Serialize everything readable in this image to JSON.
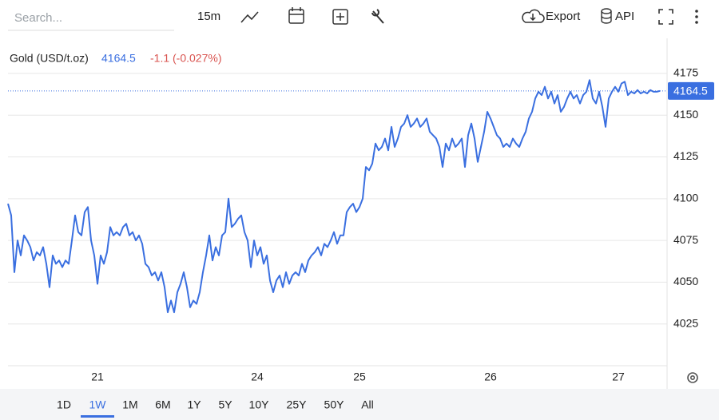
{
  "toolbar": {
    "search_placeholder": "Search...",
    "interval": "15m",
    "export": "Export",
    "api": "API"
  },
  "chart_data": {
    "type": "line",
    "title": "Gold (USD/t.oz)",
    "last_price": 4164.5,
    "change_label": "-1.1 (-0.027%)",
    "color": "#3a6fe0",
    "ylim": [
      4000,
      4196
    ],
    "yticks": [
      4025,
      4050,
      4075,
      4100,
      4125,
      4150,
      4175
    ],
    "grid": true,
    "categories": [
      null,
      null,
      null,
      null,
      null,
      null,
      null,
      null,
      null,
      null,
      null,
      null,
      null,
      null,
      null,
      null,
      null,
      null,
      null,
      null,
      null,
      null,
      null,
      null,
      null,
      null,
      null,
      null,
      "21",
      null,
      null,
      null,
      null,
      null,
      null,
      null,
      null,
      null,
      null,
      null,
      null,
      null,
      null,
      null,
      null,
      null,
      null,
      null,
      null,
      null,
      null,
      null,
      null,
      null,
      null,
      null,
      null,
      null,
      null,
      null,
      null,
      null,
      null,
      null,
      null,
      null,
      null,
      null,
      null,
      null,
      null,
      null,
      null,
      null,
      null,
      null,
      null,
      null,
      "24",
      null,
      null,
      null,
      null,
      null,
      null,
      null,
      null,
      null,
      null,
      null,
      null,
      null,
      null,
      null,
      null,
      null,
      null,
      null,
      null,
      null,
      null,
      null,
      null,
      null,
      null,
      null,
      null,
      null,
      null,
      null,
      "25",
      null,
      null,
      null,
      null,
      null,
      null,
      null,
      null,
      null,
      null,
      null,
      null,
      null,
      null,
      null,
      null,
      null,
      null,
      null,
      null,
      null,
      null,
      null,
      null,
      null,
      null,
      null,
      null,
      null,
      null,
      null,
      null,
      null,
      null,
      null,
      null,
      null,
      null,
      null,
      null,
      "26",
      null,
      null,
      null,
      null,
      null,
      null,
      null,
      null,
      null,
      null,
      null,
      null,
      null,
      null,
      null,
      null,
      null,
      null,
      null,
      null,
      null,
      null,
      null,
      null,
      null,
      null,
      null,
      null,
      null,
      null,
      null,
      null,
      null,
      null,
      null,
      null,
      null,
      null,
      null,
      "27",
      null,
      null,
      null,
      null,
      null,
      null,
      null,
      null,
      null,
      null,
      null,
      null,
      null
    ],
    "values": [
      4097,
      4090,
      4056,
      4075,
      4066,
      4078,
      4075,
      4071,
      4063,
      4068,
      4066,
      4071,
      4061,
      4047,
      4066,
      4061,
      4063,
      4059,
      4063,
      4061,
      4075,
      4090,
      4080,
      4078,
      4092,
      4095,
      4075,
      4066,
      4049,
      4066,
      4061,
      4068,
      4083,
      4078,
      4080,
      4078,
      4083,
      4085,
      4078,
      4080,
      4075,
      4078,
      4073,
      4061,
      4059,
      4054,
      4056,
      4051,
      4056,
      4047,
      4032,
      4039,
      4032,
      4044,
      4049,
      4056,
      4047,
      4035,
      4039,
      4037,
      4044,
      4056,
      4066,
      4078,
      4063,
      4071,
      4066,
      4078,
      4080,
      4100,
      4083,
      4085,
      4088,
      4090,
      4080,
      4075,
      4059,
      4075,
      4066,
      4071,
      4061,
      4066,
      4051,
      4044,
      4051,
      4054,
      4047,
      4056,
      4049,
      4054,
      4056,
      4054,
      4061,
      4056,
      4063,
      4066,
      4068,
      4071,
      4066,
      4073,
      4071,
      4075,
      4080,
      4073,
      4078,
      4078,
      4092,
      4095,
      4097,
      4092,
      4095,
      4100,
      4119,
      4117,
      4121,
      4133,
      4129,
      4131,
      4136,
      4129,
      4143,
      4131,
      4136,
      4143,
      4145,
      4150,
      4143,
      4145,
      4148,
      4143,
      4145,
      4148,
      4140,
      4138,
      4136,
      4131,
      4119,
      4133,
      4129,
      4136,
      4131,
      4133,
      4136,
      4119,
      4138,
      4145,
      4136,
      4122,
      4131,
      4140,
      4152,
      4148,
      4143,
      4138,
      4136,
      4131,
      4133,
      4131,
      4136,
      4133,
      4131,
      4136,
      4140,
      4148,
      4152,
      4160,
      4164,
      4162,
      4167,
      4160,
      4164,
      4157,
      4162,
      4152,
      4155,
      4160,
      4164,
      4160,
      4162,
      4157,
      4162,
      4164,
      4171,
      4160,
      4157,
      4164,
      4155,
      4143,
      4160,
      4164,
      4167,
      4164,
      4169,
      4170,
      4162,
      4164,
      4163,
      4165,
      4163,
      4164,
      4163,
      4165,
      4164,
      4164,
      4164.5
    ]
  },
  "ranges": {
    "options": [
      "1D",
      "1W",
      "1M",
      "6M",
      "1Y",
      "5Y",
      "10Y",
      "25Y",
      "50Y",
      "All"
    ],
    "active": 1
  }
}
